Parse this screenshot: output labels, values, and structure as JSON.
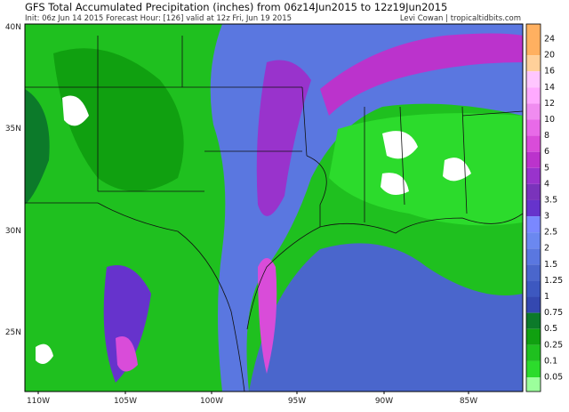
{
  "header": {
    "title": "GFS Total Accumulated Precipitation (inches) from 06z14Jun2015 to 12z19Jun2015",
    "subtitle": "Init: 06z Jun 14 2015   Forecast Hour: [126]   valid at 12z Fri, Jun 19 2015",
    "credit": "Levi Cowan | tropicaltidbits.com"
  },
  "latitude_labels": [
    "40N",
    "35N",
    "30N",
    "25N"
  ],
  "longitude_labels": [
    "110W",
    "105W",
    "100W",
    "95W",
    "90W",
    "85W"
  ],
  "colorbar": [
    {
      "label": "24",
      "color": "#ffb060"
    },
    {
      "label": "20",
      "color": "#ffd09a"
    },
    {
      "label": "16",
      "color": "#ffc6ff"
    },
    {
      "label": "14",
      "color": "#ffaaff"
    },
    {
      "label": "12",
      "color": "#f08cf0"
    },
    {
      "label": "10",
      "color": "#e86ae8"
    },
    {
      "label": "8",
      "color": "#d94cd9"
    },
    {
      "label": "6",
      "color": "#bb33cc"
    },
    {
      "label": "5",
      "color": "#9933cc"
    },
    {
      "label": "4",
      "color": "#7a33bb"
    },
    {
      "label": "3.5",
      "color": "#6633cc"
    },
    {
      "label": "3",
      "color": "#7a88ff"
    },
    {
      "label": "2.5",
      "color": "#6b88f0"
    },
    {
      "label": "2",
      "color": "#5a77e0"
    },
    {
      "label": "1.5",
      "color": "#4a66cc"
    },
    {
      "label": "1.25",
      "color": "#3d58c0"
    },
    {
      "label": "1",
      "color": "#3448b0"
    },
    {
      "label": "0.75",
      "color": "#0c7a2a"
    },
    {
      "label": "0.5",
      "color": "#10a010"
    },
    {
      "label": "0.25",
      "color": "#1fc01f"
    },
    {
      "label": "0.1",
      "color": "#2cdb2c"
    },
    {
      "label": "0.05",
      "color": "#9cff9c"
    }
  ]
}
